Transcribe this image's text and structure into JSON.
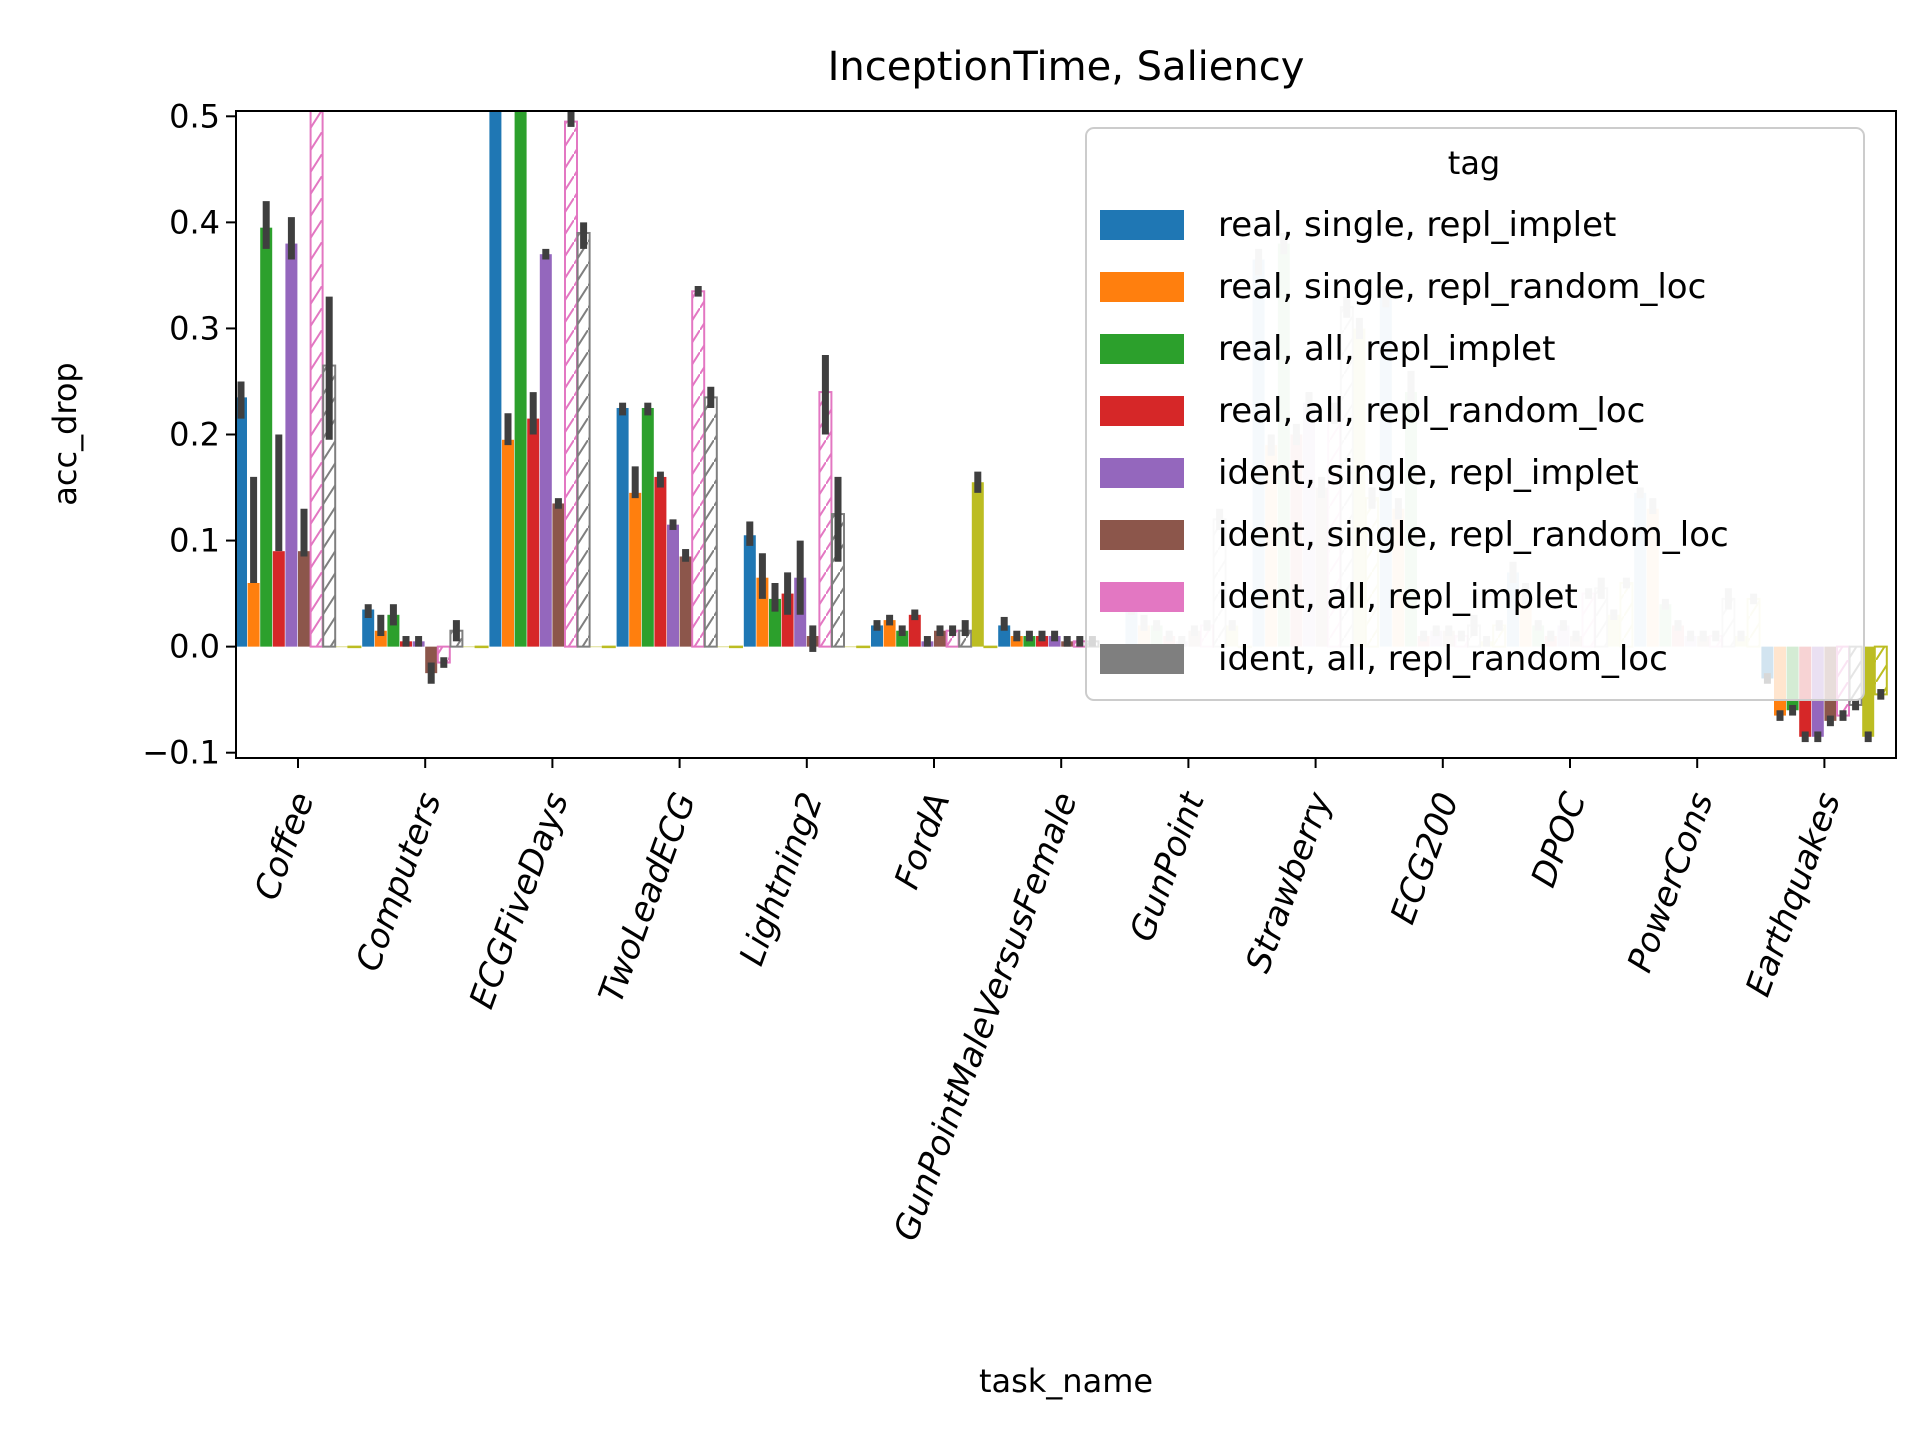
{
  "chart_data": {
    "type": "bar",
    "title": "InceptionTime, Saliency",
    "xlabel": "task_name",
    "ylabel": "acc_drop",
    "ylim": [
      -0.105,
      0.505
    ],
    "yticks": [
      "−0.1",
      "0.0",
      "0.1",
      "0.2",
      "0.3",
      "0.4",
      "0.5"
    ],
    "ytick_values": [
      -0.1,
      0.0,
      0.1,
      0.2,
      0.3,
      0.4,
      0.5
    ],
    "grid": false,
    "legend_title": "tag",
    "legend_position": "top-right",
    "categories": [
      "Coffee",
      "Computers",
      "ECGFiveDays",
      "TwoLeadECG",
      "Lightning2",
      "FordA",
      "GunPointMaleVersusFemale",
      "GunPoint",
      "Strawberry",
      "ECG200",
      "DPOC",
      "PowerCons",
      "Earthquakes"
    ],
    "series": [
      {
        "name": "real, single, repl_implet",
        "color": "#1f77b4",
        "hatched": false,
        "values": [
          0.235,
          0.035,
          0.51,
          0.225,
          0.105,
          0.02,
          0.02,
          0.04,
          0.365,
          0.33,
          0.07,
          0.145,
          -0.03
        ],
        "err": [
          [
            0.215,
            0.25
          ],
          [
            0.027,
            0.04
          ],
          [
            0.505,
            0.515
          ],
          [
            0.218,
            0.23
          ],
          [
            0.095,
            0.118
          ],
          [
            0.015,
            0.025
          ],
          [
            0.015,
            0.028
          ],
          [
            0.03,
            0.05
          ],
          [
            0.35,
            0.375
          ],
          [
            0.32,
            0.34
          ],
          [
            0.06,
            0.08
          ],
          [
            0.14,
            0.15
          ],
          [
            -0.035,
            -0.025
          ]
        ]
      },
      {
        "name": "real, single, repl_random_loc",
        "color": "#ff7f0e",
        "hatched": false,
        "values": [
          0.06,
          0.015,
          0.195,
          0.145,
          0.065,
          0.025,
          0.01,
          0.02,
          0.19,
          0.13,
          0.05,
          0.13,
          -0.065
        ],
        "err": [
          [
            0.06,
            0.16
          ],
          [
            0.01,
            0.03
          ],
          [
            0.19,
            0.22
          ],
          [
            0.14,
            0.17
          ],
          [
            0.045,
            0.088
          ],
          [
            0.02,
            0.03
          ],
          [
            0.005,
            0.015
          ],
          [
            0.015,
            0.03
          ],
          [
            0.18,
            0.2
          ],
          [
            0.12,
            0.14
          ],
          [
            0.04,
            0.06
          ],
          [
            0.125,
            0.14
          ],
          [
            -0.07,
            -0.06
          ]
        ]
      },
      {
        "name": "real, all, repl_implet",
        "color": "#2ca02c",
        "hatched": false,
        "values": [
          0.395,
          0.03,
          0.51,
          0.225,
          0.045,
          0.015,
          0.01,
          0.02,
          0.38,
          0.24,
          0.02,
          0.04,
          -0.06
        ],
        "err": [
          [
            0.375,
            0.42
          ],
          [
            0.02,
            0.04
          ],
          [
            0.505,
            0.515
          ],
          [
            0.218,
            0.23
          ],
          [
            0.033,
            0.06
          ],
          [
            0.01,
            0.02
          ],
          [
            0.005,
            0.015
          ],
          [
            0.015,
            0.025
          ],
          [
            0.37,
            0.39
          ],
          [
            0.225,
            0.26
          ],
          [
            0.015,
            0.025
          ],
          [
            0.035,
            0.045
          ],
          [
            -0.065,
            -0.055
          ]
        ]
      },
      {
        "name": "real, all, repl_random_loc",
        "color": "#d62728",
        "hatched": false,
        "values": [
          0.09,
          0.005,
          0.215,
          0.16,
          0.05,
          0.03,
          0.01,
          0.01,
          0.2,
          0.01,
          0.01,
          0.02,
          -0.085
        ],
        "err": [
          [
            0.09,
            0.2
          ],
          [
            0.0,
            0.01
          ],
          [
            0.2,
            0.24
          ],
          [
            0.15,
            0.165
          ],
          [
            0.03,
            0.07
          ],
          [
            0.025,
            0.035
          ],
          [
            0.005,
            0.015
          ],
          [
            0.005,
            0.015
          ],
          [
            0.19,
            0.21
          ],
          [
            0.005,
            0.015
          ],
          [
            0.005,
            0.015
          ],
          [
            0.015,
            0.025
          ],
          [
            -0.09,
            -0.08
          ]
        ]
      },
      {
        "name": "ident, single, repl_implet",
        "color": "#9467bd",
        "hatched": false,
        "values": [
          0.38,
          0.005,
          0.37,
          0.115,
          0.065,
          0.005,
          0.01,
          0.005,
          0.23,
          0.015,
          0.02,
          0.01,
          -0.085
        ],
        "err": [
          [
            0.365,
            0.405
          ],
          [
            0.0,
            0.01
          ],
          [
            0.365,
            0.375
          ],
          [
            0.11,
            0.12
          ],
          [
            0.03,
            0.1
          ],
          [
            0.0,
            0.01
          ],
          [
            0.005,
            0.015
          ],
          [
            0.0,
            0.01
          ],
          [
            0.22,
            0.24
          ],
          [
            0.01,
            0.02
          ],
          [
            0.015,
            0.025
          ],
          [
            0.005,
            0.015
          ],
          [
            -0.09,
            -0.08
          ]
        ]
      },
      {
        "name": "ident, single, repl_random_loc",
        "color": "#8c564b",
        "hatched": false,
        "values": [
          0.09,
          -0.025,
          0.135,
          0.085,
          0.01,
          0.015,
          0.005,
          0.015,
          0.15,
          0.015,
          0.01,
          0.01,
          -0.07
        ],
        "err": [
          [
            0.085,
            0.13
          ],
          [
            -0.035,
            -0.015
          ],
          [
            0.13,
            0.14
          ],
          [
            0.08,
            0.092
          ],
          [
            -0.005,
            0.02
          ],
          [
            0.01,
            0.02
          ],
          [
            0.0,
            0.01
          ],
          [
            0.01,
            0.02
          ],
          [
            0.14,
            0.16
          ],
          [
            0.01,
            0.02
          ],
          [
            0.005,
            0.015
          ],
          [
            0.005,
            0.015
          ],
          [
            -0.075,
            -0.065
          ]
        ]
      },
      {
        "name": "ident, all, repl_implet",
        "color": "#e377c2",
        "hatched": true,
        "values": [
          0.51,
          -0.015,
          0.495,
          0.335,
          0.24,
          0.015,
          0.005,
          0.02,
          0.22,
          0.01,
          0.05,
          0.01,
          -0.065
        ],
        "err": [
          [
            0.505,
            0.515
          ],
          [
            -0.02,
            -0.01
          ],
          [
            0.49,
            0.505
          ],
          [
            0.33,
            0.34
          ],
          [
            0.2,
            0.275
          ],
          [
            0.01,
            0.02
          ],
          [
            0.0,
            0.01
          ],
          [
            0.015,
            0.025
          ],
          [
            0.21,
            0.23
          ],
          [
            0.005,
            0.015
          ],
          [
            0.045,
            0.055
          ],
          [
            0.005,
            0.015
          ],
          [
            -0.07,
            -0.06
          ]
        ]
      },
      {
        "name": "ident, all, repl_random_loc",
        "color": "#7f7f7f",
        "hatched": true,
        "values": [
          0.265,
          0.015,
          0.39,
          0.235,
          0.125,
          0.015,
          0.005,
          0.12,
          0.32,
          0.02,
          0.055,
          0.045,
          -0.055
        ],
        "err": [
          [
            0.195,
            0.33
          ],
          [
            0.005,
            0.025
          ],
          [
            0.375,
            0.4
          ],
          [
            0.225,
            0.245
          ],
          [
            0.08,
            0.16
          ],
          [
            0.01,
            0.025
          ],
          [
            0.0,
            0.01
          ],
          [
            0.11,
            0.13
          ],
          [
            0.31,
            0.33
          ],
          [
            0.01,
            0.03
          ],
          [
            0.045,
            0.065
          ],
          [
            0.035,
            0.055
          ],
          [
            -0.06,
            -0.05
          ]
        ]
      },
      {
        "name": "",
        "color": "#bcbd22",
        "hatched": false,
        "values": [
          0,
          0,
          0,
          0,
          0,
          0.155,
          0,
          0.02,
          0.3,
          0.005,
          0.03,
          0.01,
          -0.085
        ],
        "err": [
          null,
          null,
          null,
          null,
          null,
          [
            0.145,
            0.165
          ],
          null,
          [
            0.015,
            0.025
          ],
          [
            0.29,
            0.31
          ],
          [
            0.0,
            0.01
          ],
          [
            0.025,
            0.035
          ],
          [
            0.005,
            0.015
          ],
          [
            -0.09,
            -0.08
          ]
        ]
      },
      {
        "name": "",
        "color": "#bcbd22",
        "hatched": true,
        "values": [
          0,
          0,
          0,
          0,
          0,
          0,
          0,
          0,
          0.14,
          0.02,
          0.06,
          0.045,
          -0.045
        ],
        "err": [
          null,
          null,
          null,
          null,
          null,
          null,
          null,
          null,
          [
            0.13,
            0.15
          ],
          [
            0.015,
            0.025
          ],
          [
            0.055,
            0.065
          ],
          [
            0.04,
            0.05
          ],
          [
            -0.05,
            -0.04
          ]
        ]
      }
    ],
    "faded_categories": [
      "GunPoint",
      "Strawberry",
      "ECG200",
      "DPOC",
      "PowerCons"
    ]
  }
}
